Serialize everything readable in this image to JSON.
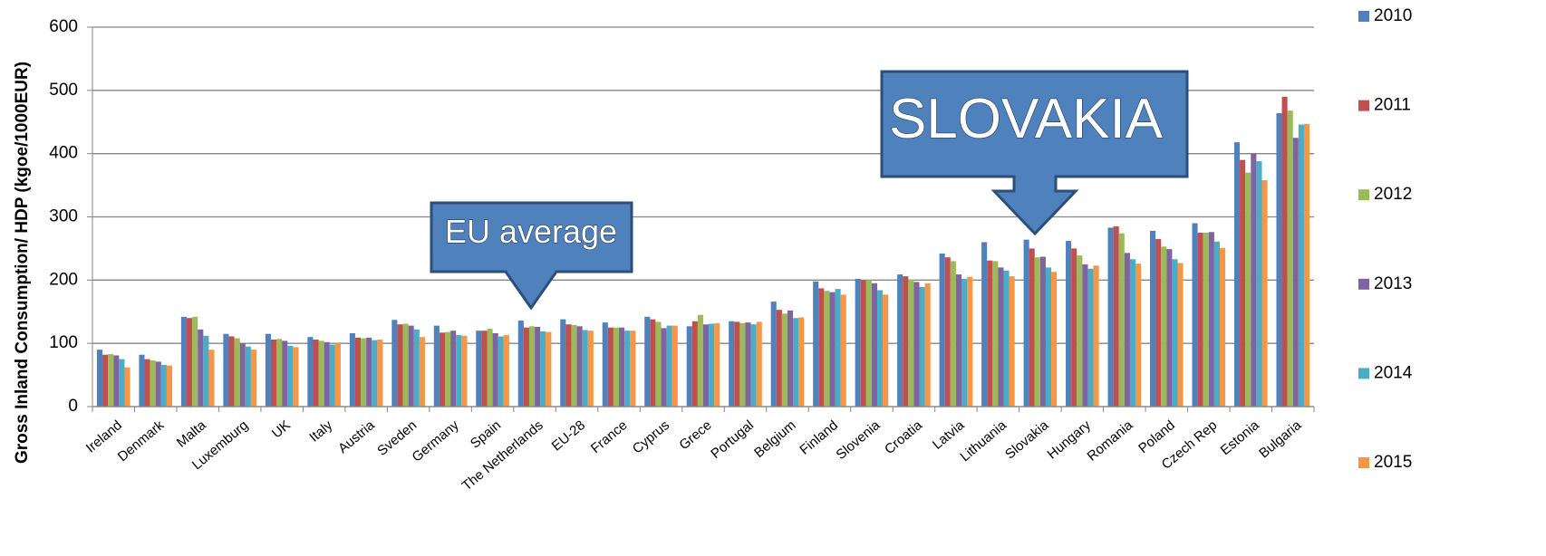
{
  "chart_data": {
    "type": "bar",
    "y_label": "Gross Inland Consumption/ HDP (kgoe/1000EUR)",
    "categories": [
      "Ireland",
      "Denmark",
      "Malta",
      "Luxemburg",
      "UK",
      "Italy",
      "Austria",
      "Sveden",
      "Germany",
      "Spain",
      "The Netherlands",
      "EU-28",
      "France",
      "Cyprus",
      "Grece",
      "Portugal",
      "Belgium",
      "Finland",
      "Slovenia",
      "Croatia",
      "Latvia",
      "Lithuania",
      "Slovakia",
      "Hungary",
      "Romania",
      "Poland",
      "Czech Rep",
      "Estonia",
      "Bulgaria"
    ],
    "series": [
      {
        "name": "2010",
        "color": "#4f81bd",
        "values": [
          90,
          82,
          142,
          115,
          115,
          110,
          116,
          137,
          128,
          120,
          136,
          138,
          133,
          142,
          127,
          135,
          166,
          198,
          202,
          209,
          242,
          260,
          264,
          262,
          283,
          278,
          290,
          418,
          464
        ]
      },
      {
        "name": "2011",
        "color": "#c0504d",
        "values": [
          82,
          75,
          140,
          111,
          106,
          106,
          109,
          130,
          117,
          120,
          125,
          130,
          125,
          138,
          135,
          134,
          153,
          187,
          200,
          206,
          236,
          231,
          250,
          250,
          285,
          265,
          275,
          390,
          490
        ]
      },
      {
        "name": "2012",
        "color": "#9bbb59",
        "values": [
          83,
          73,
          142,
          108,
          107,
          104,
          108,
          131,
          118,
          123,
          127,
          129,
          125,
          134,
          145,
          132,
          147,
          183,
          200,
          201,
          230,
          230,
          236,
          239,
          274,
          253,
          275,
          370,
          468
        ]
      },
      {
        "name": "2013",
        "color": "#8064a2",
        "values": [
          81,
          71,
          122,
          100,
          104,
          102,
          109,
          128,
          120,
          116,
          126,
          127,
          125,
          124,
          130,
          133,
          152,
          181,
          195,
          197,
          209,
          220,
          237,
          225,
          243,
          249,
          276,
          400,
          425
        ]
      },
      {
        "name": "2014",
        "color": "#4bacc6",
        "values": [
          75,
          66,
          112,
          95,
          96,
          98,
          105,
          122,
          113,
          111,
          119,
          121,
          120,
          128,
          131,
          130,
          140,
          186,
          184,
          189,
          202,
          215,
          220,
          218,
          233,
          233,
          261,
          388,
          446
        ]
      },
      {
        "name": "2015",
        "color": "#f79646",
        "values": [
          62,
          65,
          90,
          90,
          94,
          100,
          106,
          110,
          112,
          113,
          118,
          120,
          120,
          128,
          132,
          134,
          141,
          177,
          177,
          195,
          205,
          206,
          213,
          223,
          226,
          227,
          251,
          358,
          447
        ]
      }
    ],
    "ylim": [
      0,
      600
    ],
    "yticks": [
      0,
      100,
      200,
      300,
      400,
      500,
      600
    ],
    "grid": true,
    "legend": "right",
    "annotations": [
      "EU average",
      "SLOVAKIA"
    ]
  }
}
